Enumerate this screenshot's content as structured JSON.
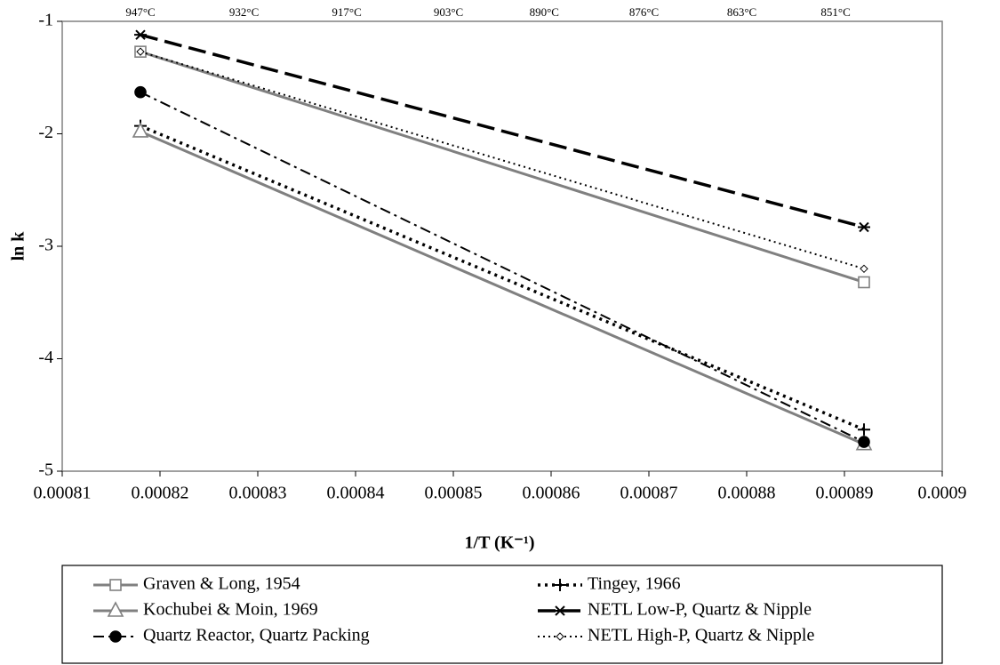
{
  "chart_data": {
    "type": "line",
    "xlabel": "1/T (K⁻¹)",
    "ylabel": "ln k",
    "xlim": [
      0.00081,
      0.0009
    ],
    "xticks": [
      0.00081,
      0.00082,
      0.00083,
      0.00084,
      0.00085,
      0.00086,
      0.00087,
      0.00088,
      0.00089,
      0.0009
    ],
    "ylim": [
      -5,
      -1
    ],
    "yticks": [
      -5,
      -4,
      -3,
      -2,
      -1
    ],
    "x2ticks": [
      {
        "value": 0.000818,
        "label": "947°C"
      },
      {
        "value": 0.0008286,
        "label": "932°C"
      },
      {
        "value": 0.0008391,
        "label": "917°C"
      },
      {
        "value": 0.0008495,
        "label": "903°C"
      },
      {
        "value": 0.0008593,
        "label": "890°C"
      },
      {
        "value": 0.0008695,
        "label": "876°C"
      },
      {
        "value": 0.0008795,
        "label": "863°C"
      },
      {
        "value": 0.0008891,
        "label": "851°C"
      }
    ],
    "grid": false,
    "series": [
      {
        "name": "Graven & Long, 1954",
        "color": "#808080",
        "marker": "square",
        "dash": "solid",
        "x": [
          0.000818,
          0.000892
        ],
        "values": [
          -1.27,
          -3.32
        ]
      },
      {
        "name": "Tingey, 1966",
        "color": "#000000",
        "marker": "plus",
        "dash": "dotted",
        "x": [
          0.000818,
          0.000892
        ],
        "values": [
          -1.93,
          -4.63
        ]
      },
      {
        "name": "Kochubei & Moin, 1969",
        "color": "#808080",
        "marker": "triangle",
        "dash": "solid",
        "x": [
          0.000818,
          0.000892
        ],
        "values": [
          -1.98,
          -4.76
        ]
      },
      {
        "name": "NETL Low-P, Quartz & Nipple",
        "color": "#000000",
        "marker": "star",
        "dash": "longdash",
        "x": [
          0.000818,
          0.000892
        ],
        "values": [
          -1.12,
          -2.83
        ]
      },
      {
        "name": "Quartz Reactor, Quartz Packing",
        "color": "#000000",
        "marker": "circle",
        "dash": "dashdot",
        "x": [
          0.000818,
          0.000892
        ],
        "values": [
          -1.63,
          -4.74
        ]
      },
      {
        "name": "NETL High-P, Quartz & Nipple",
        "color": "#000000",
        "marker": "diamond",
        "dash": "dot",
        "x": [
          0.000818,
          0.000892
        ],
        "values": [
          -1.27,
          -3.2
        ]
      }
    ]
  }
}
